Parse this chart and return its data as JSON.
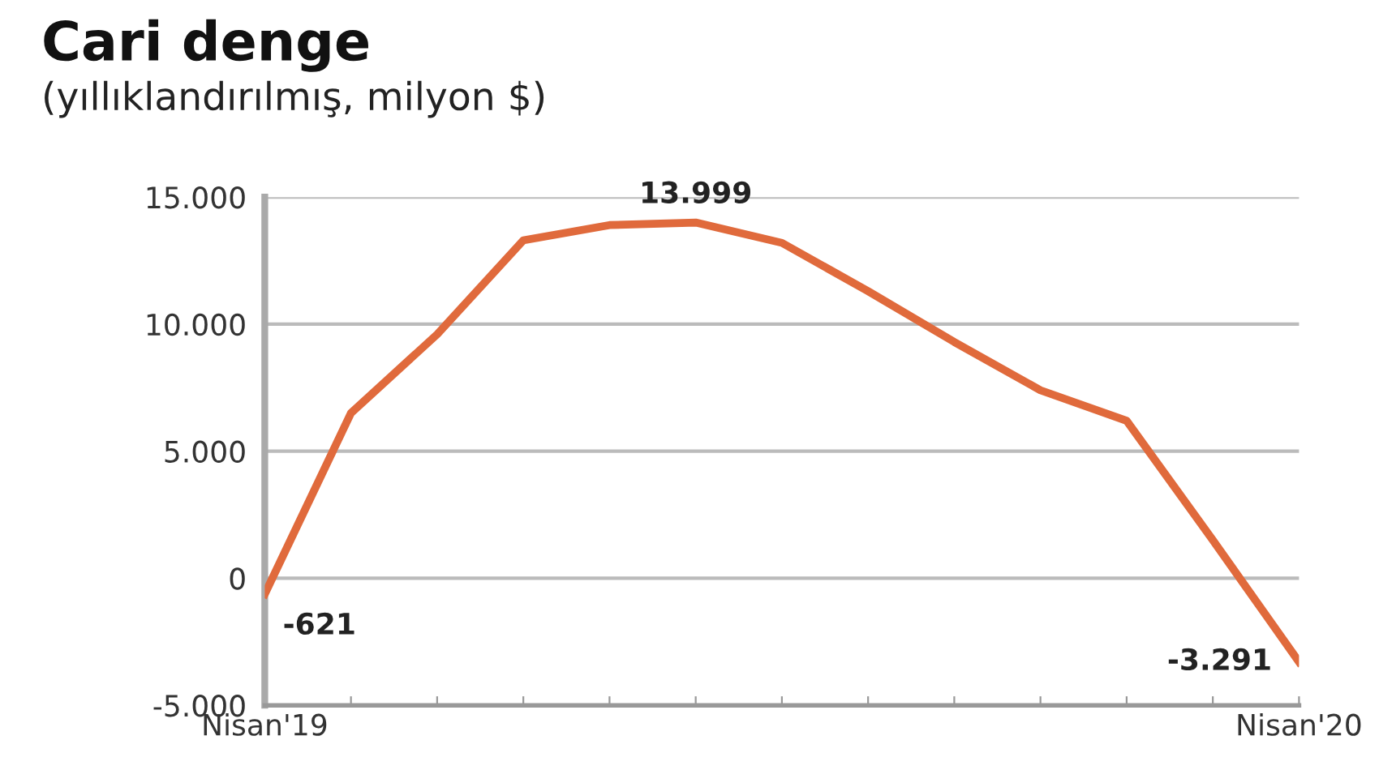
{
  "chart_data": {
    "type": "line",
    "title": "Cari denge",
    "subtitle": "(yıllıklandırılmış, milyon $)",
    "categories": [
      "Nisan'19",
      null,
      null,
      null,
      null,
      null,
      null,
      null,
      null,
      null,
      null,
      null,
      "Nisan'20"
    ],
    "series": [
      {
        "color": "#e06a3c",
        "values": [
          -621,
          6500,
          9600,
          13300,
          13900,
          13999,
          13200,
          11300,
          9300,
          7400,
          6200,
          1500,
          -3291
        ],
        "value_labels": [
          "-621",
          null,
          null,
          null,
          null,
          "13.999",
          null,
          null,
          null,
          null,
          null,
          null,
          "-3.291"
        ]
      }
    ],
    "ylim": [
      -5000,
      15000
    ],
    "yticks": [
      {
        "value": -5000,
        "label": "-5.000"
      },
      {
        "value": 0,
        "label": "0"
      },
      {
        "value": 5000,
        "label": "5.000"
      },
      {
        "value": 10000,
        "label": "10.000"
      },
      {
        "value": 15000,
        "label": "15.000"
      }
    ],
    "grid": "y",
    "marker": "none",
    "line_style": "solid"
  }
}
